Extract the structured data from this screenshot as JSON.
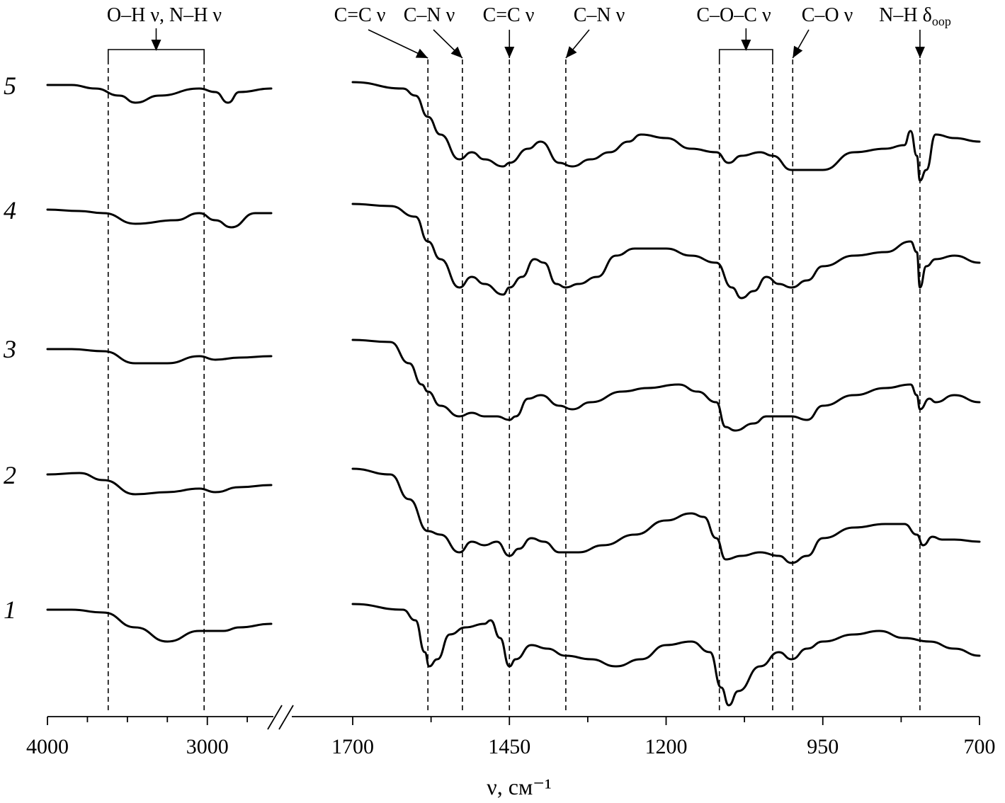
{
  "chart_data": {
    "type": "line",
    "xlabel": "ν, см⁻¹",
    "x_reversed": true,
    "axis_break_between": [
      2600,
      1700
    ],
    "panels": [
      {
        "xlim": [
          4000,
          2600
        ],
        "ticks": [
          4000,
          3000
        ]
      },
      {
        "xlim": [
          1700,
          700
        ],
        "ticks": [
          1700,
          1450,
          1200,
          950,
          700
        ]
      }
    ],
    "band_annotations": [
      {
        "label": "O–H ν, N–H ν",
        "range": [
          3620,
          3020
        ]
      },
      {
        "label": "C=C ν",
        "x": 1580
      },
      {
        "label": "C–N ν",
        "x": 1525
      },
      {
        "label": "C=C ν",
        "x": 1450
      },
      {
        "label": "C–N ν",
        "x": 1360
      },
      {
        "label": "C–O–C ν",
        "range": [
          1115,
          1030
        ]
      },
      {
        "label": "C–O ν",
        "x": 998
      },
      {
        "label": "N–H δ",
        "label_sub": "oop",
        "x": 795
      }
    ],
    "series": [
      {
        "name": "1",
        "points": [
          [
            4000,
            0
          ],
          [
            3850,
            0
          ],
          [
            3650,
            -4
          ],
          [
            3450,
            -25
          ],
          [
            3250,
            -45
          ],
          [
            3050,
            -30
          ],
          [
            2900,
            -30
          ],
          [
            2800,
            -25
          ],
          [
            2600,
            -20
          ],
          [
            1700,
            8
          ],
          [
            1620,
            0
          ],
          [
            1600,
            -15
          ],
          [
            1585,
            -60
          ],
          [
            1578,
            -80
          ],
          [
            1565,
            -70
          ],
          [
            1545,
            -35
          ],
          [
            1520,
            -25
          ],
          [
            1490,
            -20
          ],
          [
            1480,
            -15
          ],
          [
            1465,
            -40
          ],
          [
            1450,
            -80
          ],
          [
            1440,
            -70
          ],
          [
            1415,
            -50
          ],
          [
            1390,
            -55
          ],
          [
            1360,
            -65
          ],
          [
            1320,
            -70
          ],
          [
            1280,
            -80
          ],
          [
            1240,
            -70
          ],
          [
            1200,
            -50
          ],
          [
            1160,
            -45
          ],
          [
            1130,
            -60
          ],
          [
            1112,
            -110
          ],
          [
            1100,
            -135
          ],
          [
            1085,
            -115
          ],
          [
            1050,
            -80
          ],
          [
            1020,
            -60
          ],
          [
            1000,
            -70
          ],
          [
            975,
            -55
          ],
          [
            950,
            -45
          ],
          [
            900,
            -35
          ],
          [
            860,
            -30
          ],
          [
            820,
            -40
          ],
          [
            780,
            -45
          ],
          [
            740,
            -55
          ],
          [
            700,
            -65
          ]
        ]
      },
      {
        "name": "2",
        "points": [
          [
            4000,
            0
          ],
          [
            3800,
            2
          ],
          [
            3650,
            -8
          ],
          [
            3450,
            -28
          ],
          [
            3250,
            -25
          ],
          [
            3050,
            -20
          ],
          [
            2950,
            -25
          ],
          [
            2800,
            -18
          ],
          [
            2600,
            -15
          ],
          [
            1700,
            8
          ],
          [
            1640,
            0
          ],
          [
            1610,
            -35
          ],
          [
            1580,
            -80
          ],
          [
            1560,
            -85
          ],
          [
            1530,
            -110
          ],
          [
            1510,
            -95
          ],
          [
            1490,
            -100
          ],
          [
            1470,
            -95
          ],
          [
            1450,
            -115
          ],
          [
            1435,
            -105
          ],
          [
            1415,
            -90
          ],
          [
            1395,
            -95
          ],
          [
            1370,
            -110
          ],
          [
            1340,
            -110
          ],
          [
            1300,
            -100
          ],
          [
            1250,
            -85
          ],
          [
            1200,
            -65
          ],
          [
            1160,
            -55
          ],
          [
            1140,
            -60
          ],
          [
            1120,
            -90
          ],
          [
            1105,
            -120
          ],
          [
            1080,
            -115
          ],
          [
            1050,
            -110
          ],
          [
            1020,
            -115
          ],
          [
            1000,
            -125
          ],
          [
            975,
            -115
          ],
          [
            950,
            -90
          ],
          [
            900,
            -75
          ],
          [
            850,
            -70
          ],
          [
            820,
            -70
          ],
          [
            800,
            -85
          ],
          [
            790,
            -100
          ],
          [
            775,
            -88
          ],
          [
            760,
            -92
          ],
          [
            740,
            -92
          ],
          [
            700,
            -95
          ]
        ]
      },
      {
        "name": "3",
        "points": [
          [
            4000,
            0
          ],
          [
            3850,
            0
          ],
          [
            3650,
            -3
          ],
          [
            3450,
            -20
          ],
          [
            3250,
            -20
          ],
          [
            3050,
            -10
          ],
          [
            2950,
            -15
          ],
          [
            2800,
            -12
          ],
          [
            2600,
            -10
          ],
          [
            1700,
            13
          ],
          [
            1640,
            10
          ],
          [
            1610,
            -20
          ],
          [
            1590,
            -50
          ],
          [
            1580,
            -60
          ],
          [
            1560,
            -80
          ],
          [
            1530,
            -95
          ],
          [
            1510,
            -90
          ],
          [
            1490,
            -95
          ],
          [
            1470,
            -95
          ],
          [
            1450,
            -100
          ],
          [
            1440,
            -95
          ],
          [
            1420,
            -70
          ],
          [
            1400,
            -65
          ],
          [
            1370,
            -80
          ],
          [
            1350,
            -85
          ],
          [
            1320,
            -75
          ],
          [
            1270,
            -60
          ],
          [
            1230,
            -55
          ],
          [
            1180,
            -50
          ],
          [
            1150,
            -60
          ],
          [
            1120,
            -75
          ],
          [
            1105,
            -110
          ],
          [
            1090,
            -115
          ],
          [
            1060,
            -105
          ],
          [
            1040,
            -95
          ],
          [
            1000,
            -95
          ],
          [
            975,
            -100
          ],
          [
            950,
            -80
          ],
          [
            900,
            -65
          ],
          [
            850,
            -55
          ],
          [
            810,
            -50
          ],
          [
            800,
            -65
          ],
          [
            795,
            -85
          ],
          [
            780,
            -70
          ],
          [
            770,
            -75
          ],
          [
            740,
            -65
          ],
          [
            700,
            -75
          ]
        ]
      },
      {
        "name": "4",
        "points": [
          [
            4000,
            0
          ],
          [
            3800,
            -2
          ],
          [
            3650,
            -5
          ],
          [
            3450,
            -20
          ],
          [
            3200,
            -15
          ],
          [
            3050,
            -5
          ],
          [
            2950,
            -15
          ],
          [
            2850,
            -25
          ],
          [
            2700,
            -5
          ],
          [
            2600,
            -5
          ],
          [
            1700,
            8
          ],
          [
            1640,
            5
          ],
          [
            1600,
            -10
          ],
          [
            1580,
            -45
          ],
          [
            1560,
            -70
          ],
          [
            1530,
            -110
          ],
          [
            1510,
            -95
          ],
          [
            1490,
            -105
          ],
          [
            1460,
            -120
          ],
          [
            1450,
            -110
          ],
          [
            1430,
            -95
          ],
          [
            1410,
            -70
          ],
          [
            1395,
            -75
          ],
          [
            1375,
            -105
          ],
          [
            1360,
            -110
          ],
          [
            1340,
            -105
          ],
          [
            1310,
            -95
          ],
          [
            1280,
            -65
          ],
          [
            1250,
            -55
          ],
          [
            1200,
            -55
          ],
          [
            1160,
            -65
          ],
          [
            1120,
            -75
          ],
          [
            1095,
            -110
          ],
          [
            1080,
            -125
          ],
          [
            1060,
            -115
          ],
          [
            1040,
            -95
          ],
          [
            1020,
            -105
          ],
          [
            1000,
            -110
          ],
          [
            975,
            -100
          ],
          [
            950,
            -80
          ],
          [
            900,
            -65
          ],
          [
            850,
            -60
          ],
          [
            810,
            -45
          ],
          [
            800,
            -60
          ],
          [
            795,
            -110
          ],
          [
            785,
            -80
          ],
          [
            770,
            -70
          ],
          [
            740,
            -65
          ],
          [
            700,
            -75
          ]
        ]
      },
      {
        "name": "5",
        "points": [
          [
            4000,
            0
          ],
          [
            3850,
            0
          ],
          [
            3700,
            -5
          ],
          [
            3550,
            -15
          ],
          [
            3450,
            -25
          ],
          [
            3300,
            -15
          ],
          [
            3050,
            -5
          ],
          [
            2950,
            -10
          ],
          [
            2870,
            -25
          ],
          [
            2800,
            -10
          ],
          [
            2600,
            -5
          ],
          [
            1700,
            4
          ],
          [
            1620,
            -5
          ],
          [
            1600,
            -15
          ],
          [
            1580,
            -45
          ],
          [
            1560,
            -70
          ],
          [
            1530,
            -105
          ],
          [
            1510,
            -95
          ],
          [
            1490,
            -105
          ],
          [
            1460,
            -115
          ],
          [
            1450,
            -110
          ],
          [
            1420,
            -90
          ],
          [
            1400,
            -80
          ],
          [
            1370,
            -110
          ],
          [
            1350,
            -115
          ],
          [
            1320,
            -105
          ],
          [
            1290,
            -95
          ],
          [
            1260,
            -80
          ],
          [
            1240,
            -70
          ],
          [
            1200,
            -75
          ],
          [
            1160,
            -90
          ],
          [
            1120,
            -95
          ],
          [
            1100,
            -110
          ],
          [
            1080,
            -100
          ],
          [
            1050,
            -95
          ],
          [
            1030,
            -100
          ],
          [
            1000,
            -120
          ],
          [
            975,
            -120
          ],
          [
            950,
            -120
          ],
          [
            900,
            -95
          ],
          [
            850,
            -90
          ],
          [
            820,
            -85
          ],
          [
            810,
            -65
          ],
          [
            800,
            -100
          ],
          [
            795,
            -135
          ],
          [
            785,
            -120
          ],
          [
            770,
            -70
          ],
          [
            740,
            -75
          ],
          [
            700,
            -80
          ]
        ]
      }
    ]
  }
}
